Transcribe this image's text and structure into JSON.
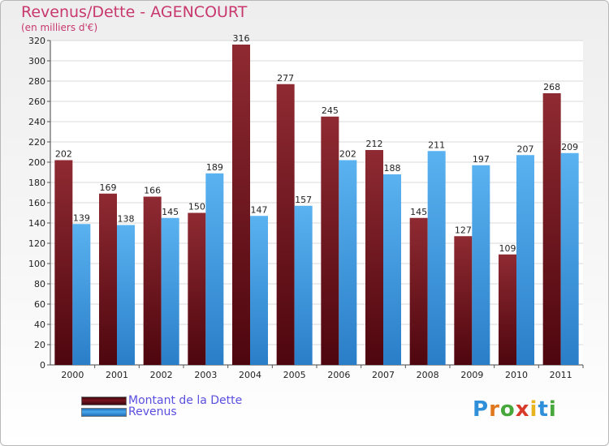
{
  "chart_data": {
    "type": "bar",
    "title": "Revenus/Dette - AGENCOURT",
    "subtitle": "(en milliers d'€)",
    "xlabel": "",
    "ylabel": "",
    "ylim": [
      0,
      320
    ],
    "yticks": [
      0,
      20,
      40,
      60,
      80,
      100,
      120,
      140,
      160,
      180,
      200,
      220,
      240,
      260,
      280,
      300,
      320
    ],
    "grid": true,
    "legend_position": "bottom-left",
    "categories": [
      "2000",
      "2001",
      "2002",
      "2003",
      "2004",
      "2005",
      "2006",
      "2007",
      "2008",
      "2009",
      "2010",
      "2011"
    ],
    "series": [
      {
        "name": "Montant de la Dette",
        "color": "#7a1420",
        "values": [
          202,
          169,
          166,
          150,
          316,
          277,
          245,
          212,
          145,
          127,
          109,
          268
        ]
      },
      {
        "name": "Revenus",
        "color": "#3a9ae2",
        "values": [
          139,
          138,
          145,
          189,
          147,
          157,
          202,
          188,
          211,
          197,
          207,
          209
        ]
      }
    ]
  },
  "logo": {
    "letters": [
      "P",
      "r",
      "o",
      "x",
      "i",
      "t",
      "i"
    ],
    "colors": [
      "#2f8fd8",
      "#e0781e",
      "#46a83a",
      "#d83a2a",
      "#e8b41e",
      "#2f8fd8",
      "#46a83a"
    ]
  }
}
